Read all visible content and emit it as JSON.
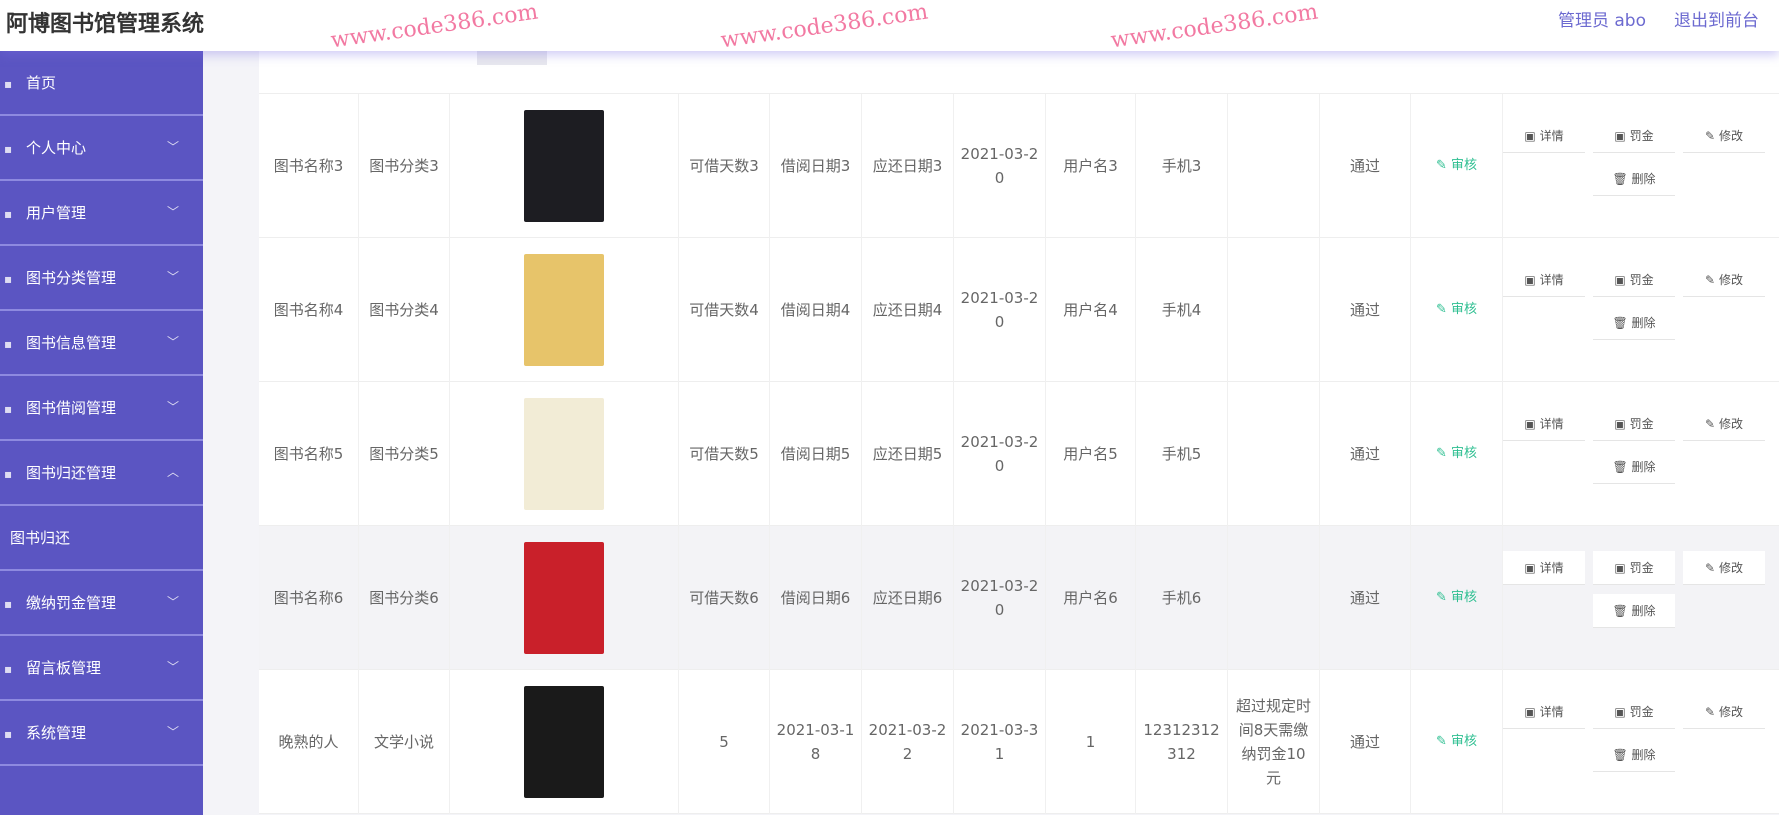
{
  "header": {
    "title": "阿博图书馆管理系统",
    "user": "管理员 abo",
    "exit": "退出到前台"
  },
  "sidebar": {
    "items": [
      {
        "label": "首页",
        "icon": "home-icon",
        "chevron": ""
      },
      {
        "label": "个人中心",
        "icon": "user-icon",
        "chevron": "﹀"
      },
      {
        "label": "用户管理",
        "icon": "users-icon",
        "chevron": "﹀"
      },
      {
        "label": "图书分类管理",
        "icon": "category-icon",
        "chevron": "﹀"
      },
      {
        "label": "图书信息管理",
        "icon": "book-icon",
        "chevron": "﹀"
      },
      {
        "label": "图书借阅管理",
        "icon": "borrow-icon",
        "chevron": "﹀"
      },
      {
        "label": "图书归还管理",
        "icon": "return-icon",
        "chevron": "︿"
      },
      {
        "label": "图书归还",
        "icon": "",
        "chevron": ""
      },
      {
        "label": "缴纳罚金管理",
        "icon": "fine-icon",
        "chevron": "﹀"
      },
      {
        "label": "留言板管理",
        "icon": "message-icon",
        "chevron": "﹀"
      },
      {
        "label": "系统管理",
        "icon": "settings-icon",
        "chevron": "﹀"
      }
    ]
  },
  "table": {
    "rows": [
      {
        "name": "图书名称3",
        "category": "图书分类3",
        "cover_color": "#1d1d22",
        "days": "可借天数3",
        "borrow": "借阅日期3",
        "due": "应还日期3",
        "returned": "2021-03-20",
        "user": "用户名3",
        "phone": "手机3",
        "remark": "",
        "status": "通过",
        "audit": "审核"
      },
      {
        "name": "图书名称4",
        "category": "图书分类4",
        "cover_color": "#e7c46a",
        "days": "可借天数4",
        "borrow": "借阅日期4",
        "due": "应还日期4",
        "returned": "2021-03-20",
        "user": "用户名4",
        "phone": "手机4",
        "remark": "",
        "status": "通过",
        "audit": "审核"
      },
      {
        "name": "图书名称5",
        "category": "图书分类5",
        "cover_color": "#f2ecd6",
        "days": "可借天数5",
        "borrow": "借阅日期5",
        "due": "应还日期5",
        "returned": "2021-03-20",
        "user": "用户名5",
        "phone": "手机5",
        "remark": "",
        "status": "通过",
        "audit": "审核"
      },
      {
        "name": "图书名称6",
        "category": "图书分类6",
        "cover_color": "#c9202a",
        "days": "可借天数6",
        "borrow": "借阅日期6",
        "due": "应还日期6",
        "returned": "2021-03-20",
        "user": "用户名6",
        "phone": "手机6",
        "remark": "",
        "status": "通过",
        "audit": "审核"
      },
      {
        "name": "晚熟的人",
        "category": "文学小说",
        "cover_color": "#1a1a1a",
        "days": "5",
        "borrow": "2021-03-18",
        "due": "2021-03-22",
        "returned": "2021-03-31",
        "user": "1",
        "phone": "12312312312",
        "remark": "超过规定时间8天需缴纳罚金10元",
        "status": "通过",
        "audit": "审核"
      }
    ],
    "actions": {
      "detail": "详情",
      "fine": "罚金",
      "edit": "修改",
      "delete": "删除"
    }
  },
  "watermark": "www.code386.com",
  "colors": {
    "sidebar": "#5b55c2",
    "accent": "#6c6ad0",
    "audit": "#2ebf91"
  }
}
